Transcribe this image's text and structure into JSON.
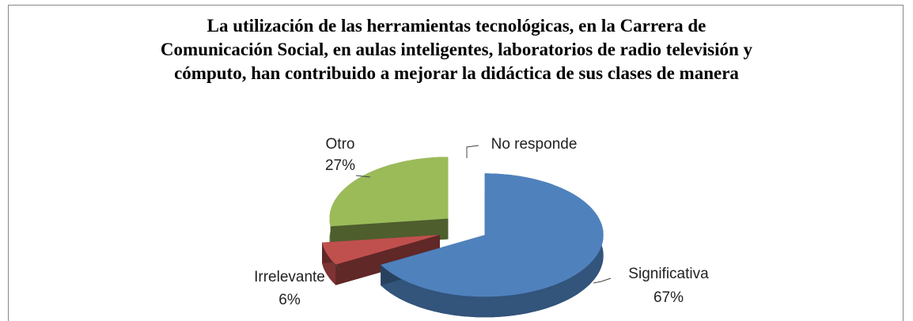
{
  "chart_data": {
    "type": "pie",
    "title": "La utilización de las herramientas tecnológicas, en la Carrera de Comunicación Social, en aulas inteligentes, laboratorios de radio televisión y cómputo, han contribuido a mejorar la didáctica de sus clases de manera",
    "categories": [
      "Significativa",
      "Irrelevante",
      "Otro",
      "No responde"
    ],
    "values": [
      67,
      6,
      27,
      0
    ],
    "value_labels": [
      "67%",
      "6%",
      "27%",
      null
    ],
    "colors": [
      "#4f81bd",
      "#c0504d",
      "#9bbb59",
      "#8064a2"
    ]
  }
}
